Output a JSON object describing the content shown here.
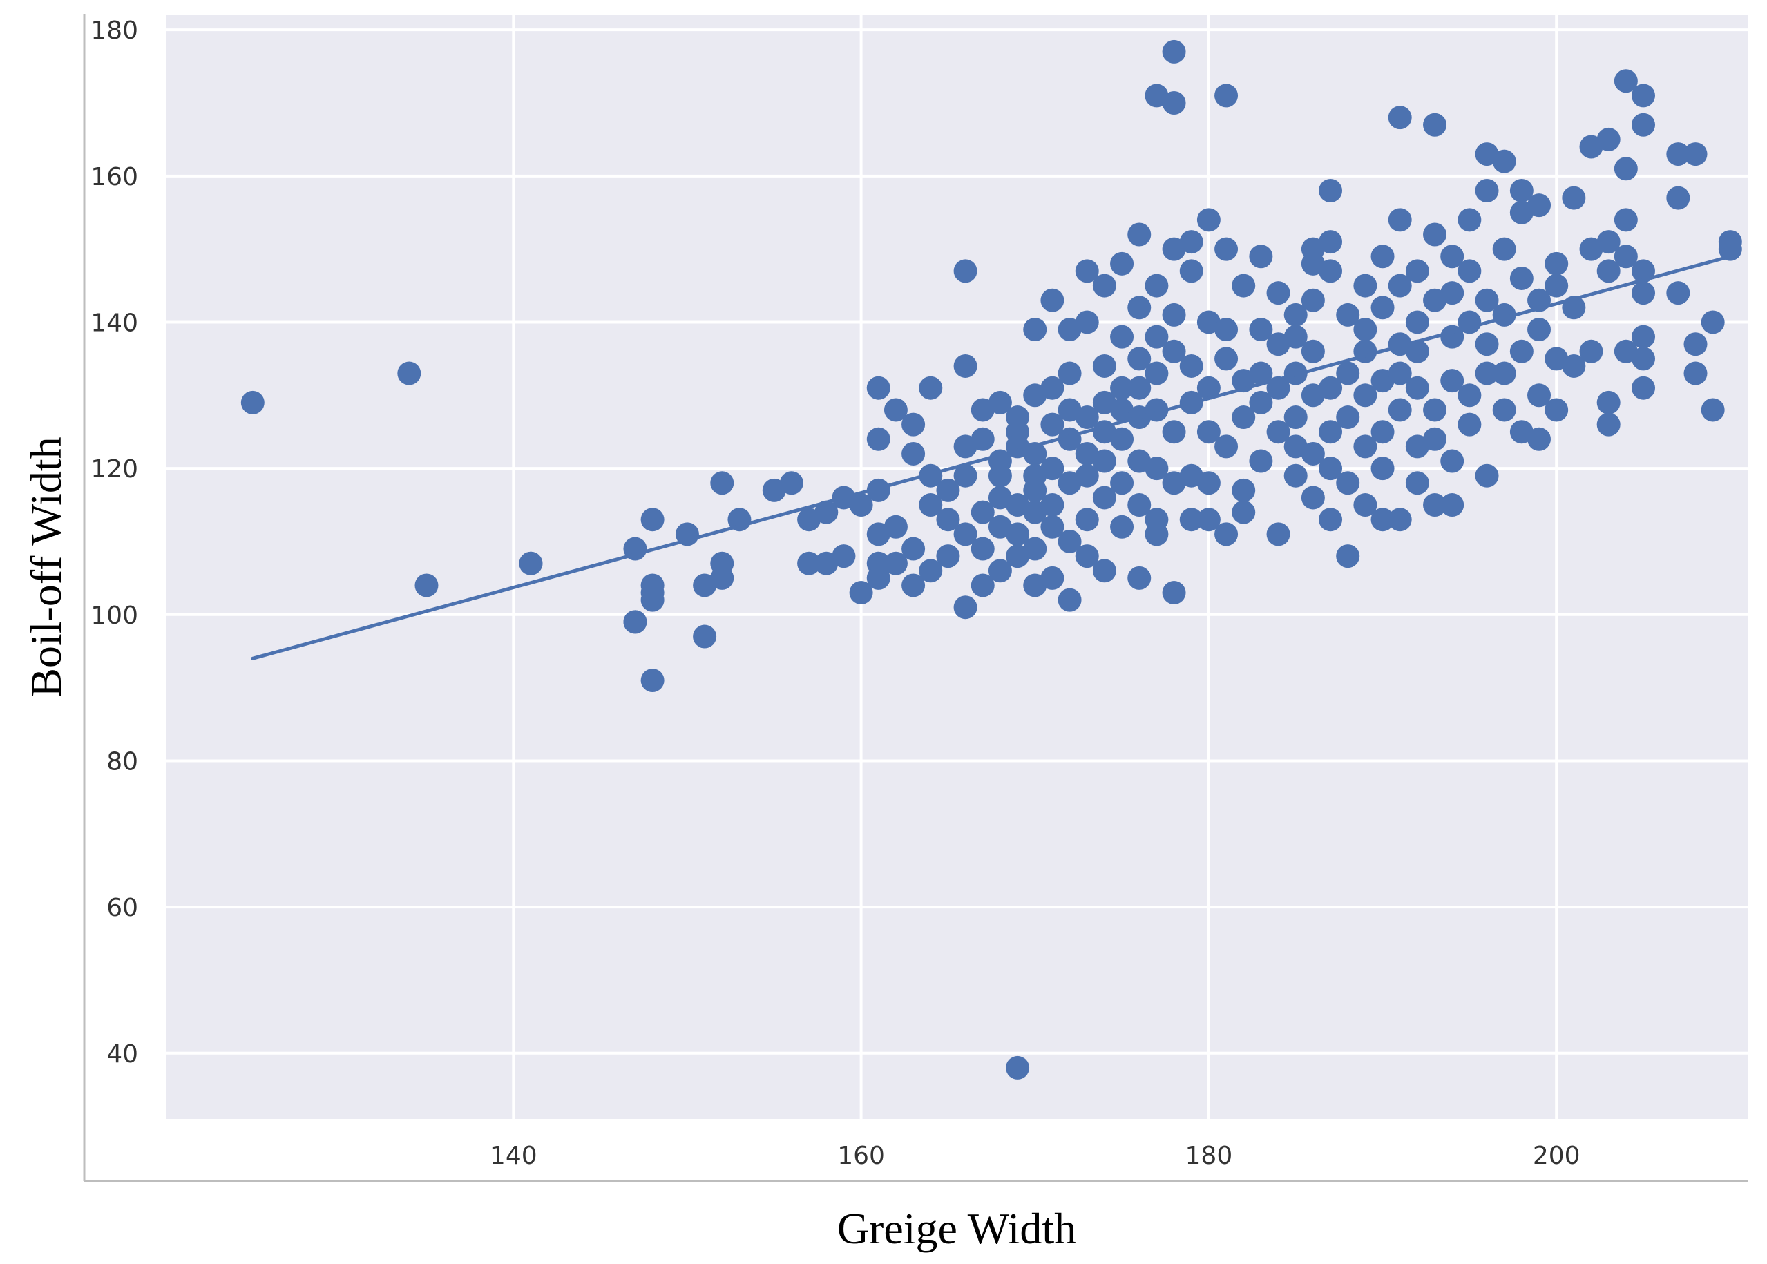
{
  "chart_data": {
    "type": "scatter",
    "title": "",
    "xlabel": "Greige Width",
    "ylabel": "Boil-off Width",
    "xlim": [
      120,
      211
    ],
    "ylim": [
      31,
      182
    ],
    "xticks": [
      140,
      160,
      180,
      200
    ],
    "yticks": [
      40,
      60,
      80,
      100,
      120,
      140,
      160,
      180
    ],
    "grid": true,
    "legend": "none",
    "colors": {
      "background": "#eaeaf2",
      "grid": "#ffffff",
      "points": "#4c72b0",
      "line": "#4c72b0"
    },
    "trendline": {
      "x": [
        125,
        210
      ],
      "y": [
        94,
        149
      ]
    },
    "series": [
      {
        "points": [
          [
            125,
            129
          ],
          [
            134,
            133
          ],
          [
            135,
            104
          ],
          [
            141,
            107
          ],
          [
            141,
            107
          ],
          [
            147,
            109
          ],
          [
            147,
            99
          ],
          [
            147,
            99
          ],
          [
            148,
            103
          ],
          [
            148,
            104
          ],
          [
            148,
            102
          ],
          [
            148,
            91
          ],
          [
            148,
            113
          ],
          [
            150,
            111
          ],
          [
            151,
            97
          ],
          [
            151,
            104
          ],
          [
            152,
            105
          ],
          [
            152,
            107
          ],
          [
            152,
            118
          ],
          [
            153,
            113
          ],
          [
            155,
            117
          ],
          [
            156,
            118
          ],
          [
            157,
            113
          ],
          [
            157,
            107
          ],
          [
            158,
            107
          ],
          [
            158,
            114
          ],
          [
            159,
            108
          ],
          [
            159,
            116
          ],
          [
            160,
            103
          ],
          [
            160,
            115
          ],
          [
            161,
            111
          ],
          [
            161,
            107
          ],
          [
            161,
            117
          ],
          [
            161,
            131
          ],
          [
            161,
            124
          ],
          [
            161,
            105
          ],
          [
            162,
            112
          ],
          [
            162,
            128
          ],
          [
            162,
            107
          ],
          [
            163,
            122
          ],
          [
            163,
            126
          ],
          [
            163,
            109
          ],
          [
            163,
            104
          ],
          [
            164,
            106
          ],
          [
            164,
            119
          ],
          [
            164,
            115
          ],
          [
            164,
            131
          ],
          [
            165,
            117
          ],
          [
            165,
            113
          ],
          [
            165,
            108
          ],
          [
            166,
            123
          ],
          [
            166,
            134
          ],
          [
            166,
            147
          ],
          [
            166,
            101
          ],
          [
            166,
            111
          ],
          [
            166,
            119
          ],
          [
            167,
            109
          ],
          [
            167,
            128
          ],
          [
            167,
            114
          ],
          [
            167,
            124
          ],
          [
            167,
            104
          ],
          [
            168,
            121
          ],
          [
            168,
            112
          ],
          [
            168,
            129
          ],
          [
            168,
            116
          ],
          [
            168,
            106
          ],
          [
            168,
            119
          ],
          [
            169,
            108
          ],
          [
            169,
            115
          ],
          [
            169,
            125
          ],
          [
            169,
            123
          ],
          [
            169,
            38
          ],
          [
            169,
            111
          ],
          [
            169,
            127
          ],
          [
            170,
            114
          ],
          [
            170,
            104
          ],
          [
            170,
            130
          ],
          [
            170,
            109
          ],
          [
            170,
            119
          ],
          [
            170,
            122
          ],
          [
            170,
            139
          ],
          [
            170,
            117
          ],
          [
            171,
            143
          ],
          [
            171,
            112
          ],
          [
            171,
            126
          ],
          [
            171,
            105
          ],
          [
            171,
            120
          ],
          [
            171,
            131
          ],
          [
            171,
            115
          ],
          [
            172,
            118
          ],
          [
            172,
            102
          ],
          [
            172,
            128
          ],
          [
            172,
            110
          ],
          [
            172,
            133
          ],
          [
            172,
            124
          ],
          [
            172,
            139
          ],
          [
            173,
            122
          ],
          [
            173,
            113
          ],
          [
            173,
            140
          ],
          [
            173,
            127
          ],
          [
            173,
            108
          ],
          [
            173,
            147
          ],
          [
            173,
            119
          ],
          [
            174,
            125
          ],
          [
            174,
            116
          ],
          [
            174,
            134
          ],
          [
            174,
            106
          ],
          [
            174,
            129
          ],
          [
            174,
            121
          ],
          [
            174,
            145
          ],
          [
            175,
            112
          ],
          [
            175,
            128
          ],
          [
            175,
            138
          ],
          [
            175,
            118
          ],
          [
            175,
            131
          ],
          [
            175,
            148
          ],
          [
            175,
            124
          ],
          [
            176,
            142
          ],
          [
            176,
            115
          ],
          [
            176,
            131
          ],
          [
            176,
            105
          ],
          [
            176,
            135
          ],
          [
            176,
            121
          ],
          [
            176,
            127
          ],
          [
            176,
            152
          ],
          [
            177,
            138
          ],
          [
            177,
            120
          ],
          [
            177,
            113
          ],
          [
            177,
            145
          ],
          [
            177,
            128
          ],
          [
            177,
            111
          ],
          [
            177,
            171
          ],
          [
            177,
            133
          ],
          [
            178,
            150
          ],
          [
            178,
            125
          ],
          [
            178,
            141
          ],
          [
            178,
            177
          ],
          [
            178,
            118
          ],
          [
            178,
            103
          ],
          [
            178,
            170
          ],
          [
            178,
            136
          ],
          [
            179,
            147
          ],
          [
            179,
            129
          ],
          [
            179,
            113
          ],
          [
            179,
            134
          ],
          [
            179,
            119
          ],
          [
            179,
            151
          ],
          [
            180,
            154
          ],
          [
            180,
            140
          ],
          [
            180,
            125
          ],
          [
            180,
            113
          ],
          [
            180,
            131
          ],
          [
            180,
            118
          ],
          [
            181,
            135
          ],
          [
            181,
            111
          ],
          [
            181,
            150
          ],
          [
            181,
            139
          ],
          [
            181,
            123
          ],
          [
            181,
            171
          ],
          [
            182,
            117
          ],
          [
            182,
            132
          ],
          [
            182,
            127
          ],
          [
            182,
            114
          ],
          [
            182,
            145
          ],
          [
            183,
            149
          ],
          [
            183,
            121
          ],
          [
            183,
            133
          ],
          [
            183,
            139
          ],
          [
            183,
            129
          ],
          [
            184,
            111
          ],
          [
            184,
            125
          ],
          [
            184,
            137
          ],
          [
            184,
            144
          ],
          [
            184,
            131
          ],
          [
            185,
            119
          ],
          [
            185,
            141
          ],
          [
            185,
            127
          ],
          [
            185,
            133
          ],
          [
            185,
            123
          ],
          [
            185,
            138
          ],
          [
            186,
            116
          ],
          [
            186,
            130
          ],
          [
            186,
            122
          ],
          [
            186,
            150
          ],
          [
            186,
            136
          ],
          [
            186,
            148
          ],
          [
            186,
            143
          ],
          [
            187,
            131
          ],
          [
            187,
            125
          ],
          [
            187,
            113
          ],
          [
            187,
            147
          ],
          [
            187,
            158
          ],
          [
            187,
            120
          ],
          [
            187,
            151
          ],
          [
            188,
            108
          ],
          [
            188,
            133
          ],
          [
            188,
            141
          ],
          [
            188,
            127
          ],
          [
            188,
            118
          ],
          [
            189,
            136
          ],
          [
            189,
            130
          ],
          [
            189,
            123
          ],
          [
            189,
            145
          ],
          [
            189,
            115
          ],
          [
            189,
            139
          ],
          [
            190,
            149
          ],
          [
            190,
            125
          ],
          [
            190,
            132
          ],
          [
            190,
            113
          ],
          [
            190,
            142
          ],
          [
            190,
            120
          ],
          [
            191,
            137
          ],
          [
            191,
            154
          ],
          [
            191,
            128
          ],
          [
            191,
            113
          ],
          [
            191,
            168
          ],
          [
            191,
            145
          ],
          [
            191,
            133
          ],
          [
            192,
            140
          ],
          [
            192,
            123
          ],
          [
            192,
            131
          ],
          [
            192,
            147
          ],
          [
            192,
            118
          ],
          [
            192,
            136
          ],
          [
            193,
            152
          ],
          [
            193,
            167
          ],
          [
            193,
            128
          ],
          [
            193,
            143
          ],
          [
            193,
            115
          ],
          [
            193,
            124
          ],
          [
            194,
            138
          ],
          [
            194,
            149
          ],
          [
            194,
            132
          ],
          [
            194,
            115
          ],
          [
            194,
            144
          ],
          [
            194,
            121
          ],
          [
            195,
            154
          ],
          [
            195,
            130
          ],
          [
            195,
            126
          ],
          [
            195,
            140
          ],
          [
            195,
            147
          ],
          [
            196,
            158
          ],
          [
            196,
            119
          ],
          [
            196,
            133
          ],
          [
            196,
            163
          ],
          [
            196,
            137
          ],
          [
            196,
            143
          ],
          [
            197,
            162
          ],
          [
            197,
            128
          ],
          [
            197,
            150
          ],
          [
            197,
            141
          ],
          [
            197,
            133
          ],
          [
            198,
            146
          ],
          [
            198,
            125
          ],
          [
            198,
            158
          ],
          [
            198,
            136
          ],
          [
            198,
            155
          ],
          [
            199,
            130
          ],
          [
            199,
            143
          ],
          [
            199,
            124
          ],
          [
            199,
            156
          ],
          [
            199,
            139
          ],
          [
            200,
            148
          ],
          [
            200,
            135
          ],
          [
            200,
            128
          ],
          [
            200,
            145
          ],
          [
            201,
            142
          ],
          [
            201,
            134
          ],
          [
            201,
            157
          ],
          [
            202,
            150
          ],
          [
            202,
            136
          ],
          [
            202,
            164
          ],
          [
            203,
            147
          ],
          [
            203,
            129
          ],
          [
            203,
            165
          ],
          [
            203,
            126
          ],
          [
            203,
            151
          ],
          [
            204,
            173
          ],
          [
            204,
            154
          ],
          [
            204,
            136
          ],
          [
            204,
            161
          ],
          [
            204,
            149
          ],
          [
            205,
            167
          ],
          [
            205,
            171
          ],
          [
            205,
            138
          ],
          [
            205,
            144
          ],
          [
            205,
            131
          ],
          [
            205,
            147
          ],
          [
            205,
            135
          ],
          [
            207,
            157
          ],
          [
            207,
            163
          ],
          [
            207,
            144
          ],
          [
            208,
            163
          ],
          [
            208,
            137
          ],
          [
            208,
            133
          ],
          [
            209,
            140
          ],
          [
            209,
            128
          ],
          [
            210,
            151
          ],
          [
            210,
            150
          ]
        ]
      }
    ]
  }
}
